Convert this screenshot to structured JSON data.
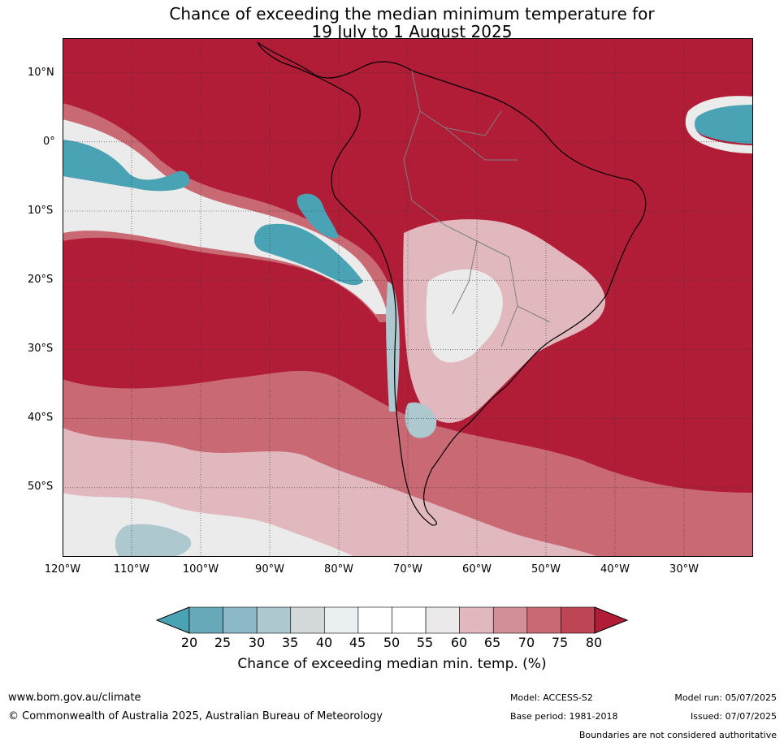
{
  "title": {
    "line1": "Chance of exceeding the median minimum temperature for",
    "line2": "19 July to 1 August 2025"
  },
  "map": {
    "lat_labels": [
      "10°N",
      "0°",
      "10°S",
      "20°S",
      "30°S",
      "40°S",
      "50°S"
    ],
    "lon_labels": [
      "120°W",
      "110°W",
      "100°W",
      "90°W",
      "80°W",
      "70°W",
      "60°W",
      "50°W",
      "40°W",
      "30°W"
    ],
    "extent": {
      "lon": [
        -120,
        -20
      ],
      "lat": [
        -60,
        15
      ]
    },
    "lat_lines": [
      10,
      0,
      -10,
      -20,
      -30,
      -40,
      -50
    ],
    "lon_lines": [
      -110,
      -100,
      -90,
      -80,
      -70,
      -60,
      -50,
      -40,
      -30
    ]
  },
  "colorbar": {
    "ticks": [
      "20",
      "25",
      "30",
      "35",
      "40",
      "45",
      "50",
      "55",
      "60",
      "65",
      "70",
      "75",
      "80"
    ],
    "colors": [
      "#67a9b9",
      "#8bb9c7",
      "#adc8cf",
      "#d3d9da",
      "#eaf0f2",
      "#ffffff",
      "#ffffff",
      "#ebe9ea",
      "#e0b8bd",
      "#d38f98",
      "#c86974",
      "#be4554"
    ],
    "under_color": "#4aa3b5",
    "over_color": "#b11c37",
    "label": "Chance of exceeding median min. temp. (%)"
  },
  "colors": {
    "high": "#b11c37",
    "mid_high": "#c86974",
    "light_pink": "#e0b8bd",
    "neutral": "#ecebec",
    "light_blue": "#adc8cf",
    "blue": "#4aa3b5",
    "coast": "#000000",
    "borders": "#808080"
  },
  "footer": {
    "url": "www.bom.gov.au/climate",
    "copyright": "© Commonwealth of Australia 2025, Australian Bureau of Meteorology",
    "model": "Model: ACCESS-S2",
    "base_period": "Base period: 1981-2018",
    "model_run": "Model run: 05/07/2025",
    "issued": "Issued: 07/07/2025",
    "boundaries": "Boundaries are not considered authoritative"
  }
}
